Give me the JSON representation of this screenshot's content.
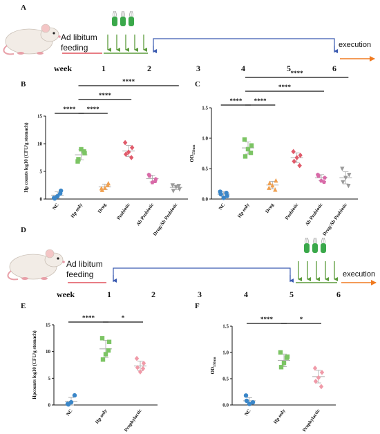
{
  "panels": {
    "A": "A",
    "B": "B",
    "C": "C",
    "D": "D",
    "E": "E",
    "F": "F"
  },
  "timeline_a": {
    "feeding": [
      "Ad libitum",
      "feeding"
    ],
    "week_label": "week",
    "weeks": [
      "1",
      "2",
      "3",
      "4",
      "5",
      "6"
    ],
    "execution": "execution"
  },
  "timeline_d": {
    "feeding": [
      "Ad libitum",
      "feeding"
    ],
    "week_label": "week",
    "weeks": [
      "1",
      "2",
      "3",
      "4",
      "5",
      "6"
    ],
    "execution": "execution"
  },
  "colors": {
    "NC": "#3a86c8",
    "Hp only": "#7cc464",
    "Drug": "#f0a050",
    "Probiotic": "#e05a6a",
    "Ab Probiotic": "#d86aa8",
    "Drug/Ab Probiotic": "#9a9a9a",
    "Prophylactic": "#f09aa8",
    "feeding": "#e0505c",
    "timeline_green": "#5a9a3a",
    "timeline_blue": "#3a5ab0",
    "execution": "#f07a20"
  },
  "chart_data": [
    {
      "id": "B",
      "type": "scatter",
      "ylabel": "Hp counts log10 (CFU/g stomach)",
      "ylim": [
        0,
        15
      ],
      "yticks": [
        "0",
        "5",
        "10",
        "15"
      ],
      "categories": [
        "NC",
        "Hp only",
        "Drug",
        "Probiotic",
        "Ab Probiotic",
        "Drug/Ab Probiotic"
      ],
      "points": [
        [
          0.2,
          1.5,
          0.5,
          0.1,
          1.0
        ],
        [
          6.8,
          8.3,
          9.0,
          7.2,
          8.6
        ],
        [
          1.9,
          2.8,
          2.0,
          1.6,
          2.5
        ],
        [
          10.2,
          9.3,
          8.5,
          8.1,
          7.5
        ],
        [
          4.4,
          3.6,
          3.0,
          4.2,
          3.2
        ],
        [
          2.5,
          1.8,
          2.2,
          1.5,
          2.4
        ]
      ],
      "means": [
        0.7,
        8.0,
        2.2,
        8.7,
        3.7,
        2.1
      ],
      "errs": [
        0.6,
        0.9,
        0.5,
        1.0,
        0.6,
        0.4
      ],
      "significance": [
        {
          "from": 0,
          "to": 1,
          "label": "****",
          "level": 1
        },
        {
          "from": 1,
          "to": 2,
          "label": "****",
          "level": 1
        },
        {
          "from": 1,
          "to": 3,
          "label": "****",
          "level": 2
        },
        {
          "from": 1,
          "to": 5,
          "label": "****",
          "level": 3
        }
      ]
    },
    {
      "id": "C",
      "type": "scatter",
      "ylabel": "OD",
      "ylabel_sub": "550nm",
      "ylim": [
        0,
        1.5
      ],
      "yticks": [
        "0.0",
        "0.5",
        "1.0",
        "1.5"
      ],
      "categories": [
        "NC",
        "Hp only",
        "Drug",
        "Probiotic",
        "Ab Probiotic",
        "Drug/Ab Probiotic"
      ],
      "points": [
        [
          0.12,
          0.05,
          0.02,
          0.08,
          0.1
        ],
        [
          0.98,
          0.88,
          0.82,
          0.7,
          0.76
        ],
        [
          0.18,
          0.3,
          0.22,
          0.26,
          0.15
        ],
        [
          0.78,
          0.72,
          0.68,
          0.62,
          0.55
        ],
        [
          0.4,
          0.35,
          0.3,
          0.38,
          0.28
        ],
        [
          0.5,
          0.4,
          0.35,
          0.28,
          0.22
        ]
      ],
      "means": [
        0.08,
        0.84,
        0.23,
        0.68,
        0.35,
        0.35
      ],
      "errs": [
        0.04,
        0.1,
        0.06,
        0.08,
        0.05,
        0.1
      ],
      "significance": [
        {
          "from": 0,
          "to": 1,
          "label": "****",
          "level": 1
        },
        {
          "from": 1,
          "to": 2,
          "label": "****",
          "level": 1
        },
        {
          "from": 1,
          "to": 4,
          "label": "****",
          "level": 2
        },
        {
          "from": 1,
          "to": 5,
          "label": "****",
          "level": 3
        }
      ]
    },
    {
      "id": "E",
      "type": "scatter",
      "ylabel": "Hpcounts log10 (CFU/g stomach)",
      "ylim": [
        0,
        15
      ],
      "yticks": [
        "0",
        "5",
        "10",
        "15"
      ],
      "categories": [
        "NC",
        "Hp only",
        "Prophylactic"
      ],
      "points": [
        [
          0.2,
          1.8,
          0.5,
          0.1
        ],
        [
          12.5,
          11.8,
          9.5,
          8.5,
          10.2
        ],
        [
          8.7,
          7.8,
          6.2,
          7.0,
          6.8
        ]
      ],
      "means": [
        0.7,
        10.5,
        7.3
      ],
      "errs": [
        0.7,
        1.6,
        0.9
      ],
      "significance": [
        {
          "from": 0,
          "to": 1,
          "label": "****",
          "level": 1
        },
        {
          "from": 1,
          "to": 2,
          "label": "*",
          "level": 1
        }
      ]
    },
    {
      "id": "F",
      "type": "scatter",
      "ylabel": "OD",
      "ylabel_sub": "550nm",
      "ylim": [
        0,
        1.5
      ],
      "yticks": [
        "0.0",
        "0.5",
        "1.0",
        "1.5"
      ],
      "categories": [
        "NC",
        "Hp only",
        "Prophylactic"
      ],
      "points": [
        [
          0.18,
          0.05,
          0.02,
          0.08
        ],
        [
          1.0,
          0.92,
          0.8,
          0.72,
          0.9
        ],
        [
          0.7,
          0.62,
          0.52,
          0.45,
          0.35
        ]
      ],
      "means": [
        0.08,
        0.85,
        0.54
      ],
      "errs": [
        0.06,
        0.12,
        0.12
      ],
      "significance": [
        {
          "from": 0,
          "to": 1,
          "label": "****",
          "level": 1
        },
        {
          "from": 1,
          "to": 2,
          "label": "*",
          "level": 1
        }
      ]
    }
  ]
}
